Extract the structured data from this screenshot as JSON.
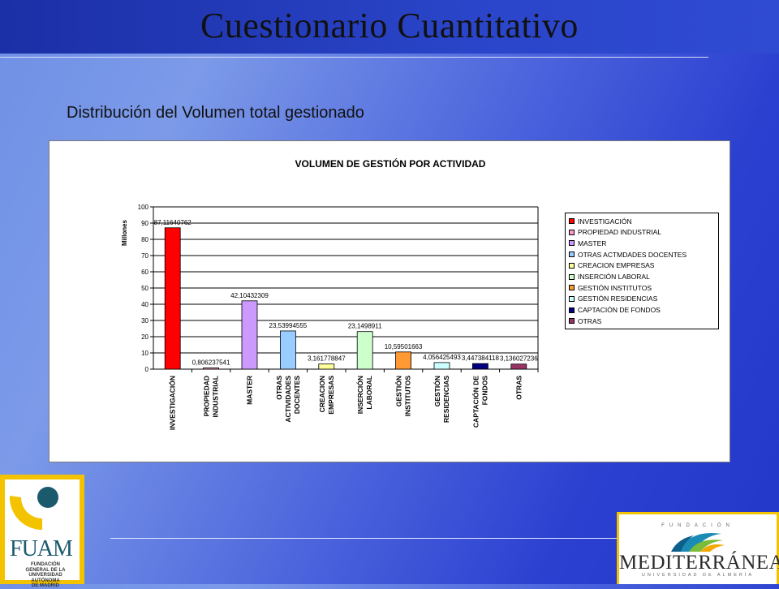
{
  "slide": {
    "title": "Cuestionario Cuantitativo",
    "subtitle": "Distribución del Volumen total gestionado"
  },
  "colors": {
    "background": "#4a62dc",
    "topbar": "#2a45c9",
    "logo_gold": "#f3c300"
  },
  "chart_data": {
    "type": "bar",
    "title": "VOLUMEN DE GESTIÓN POR ACTIVIDAD",
    "xlabel": "",
    "ylabel": "Millones",
    "ylim": [
      0,
      100
    ],
    "yticks": [
      0,
      10,
      20,
      30,
      40,
      50,
      60,
      70,
      80,
      90,
      100
    ],
    "grid": true,
    "legend_position": "right",
    "categories": [
      "INVESTIGACIÓN",
      "PROPIEDAD INDUSTRIAL",
      "MASTER",
      "OTRAS ACTIVIDADES DOCENTES",
      "CREACION EMPRESAS",
      "INSERCIÓN LABORAL",
      "GESTIÓN INSTITUTOS",
      "GESTIÓN RESIDENCIAS",
      "CAPTACIÓN DE FONDOS",
      "OTRAS"
    ],
    "category_lines": [
      [
        "INVESTIGACIÓN"
      ],
      [
        "PROPIEDAD",
        "INDUSTRIAL"
      ],
      [
        "MASTER"
      ],
      [
        "OTRAS",
        "ACTIVIDADES",
        "DOCENTES"
      ],
      [
        "CREACION",
        "EMPRESAS"
      ],
      [
        "INSERCIÓN",
        "LABORAL"
      ],
      [
        "GESTIÓN",
        "INSTITUTOS"
      ],
      [
        "GESTIÓN",
        "RESIDENCIAS"
      ],
      [
        "CAPTACIÓN DE",
        "FONDOS"
      ],
      [
        "OTRAS"
      ]
    ],
    "values": [
      87.11640762,
      0.806237541,
      42.10432309,
      23.53994555,
      3.161778847,
      23.1498911,
      10.59501663,
      4.056425493,
      3.447384118,
      3.136027236
    ],
    "value_labels": [
      "87,11640762",
      "0,806237541",
      "42,10432309",
      "23,53994555",
      "3,161778847",
      "23,1498911",
      "10,59501663",
      "4,056425493",
      "3,447384118",
      "3,136027236"
    ],
    "colors": [
      "#ff0000",
      "#ff99cc",
      "#cc99ff",
      "#99ccff",
      "#ffff99",
      "#ccffcc",
      "#ff9933",
      "#ccffff",
      "#000080",
      "#993366"
    ],
    "legend": [
      "INVESTIGACIÓN",
      "PROPIEDAD INDUSTRIAL",
      "MASTER",
      "OTRAS ACTMDADES DOCENTES",
      "CREACION EMPRESAS",
      "INSERCIÓN LABORAL",
      "GESTIÓN INSTITUTOS",
      "GESTIÓN RESIDENCIAS",
      "CAPTACIÓN DE FONDOS",
      "OTRAS"
    ]
  },
  "logos": {
    "fuam": {
      "name": "FUAM",
      "caption_lines": [
        "FUNDACIÓN",
        "GENERAL DE LA",
        "UNIVERSIDAD",
        "AUTÓNOMA",
        "DE MADRID"
      ]
    },
    "mediterranea": {
      "top": "FUNDACIÓN",
      "name": "MEDITERRÁNEA",
      "sub": "UNIVERSIDAD DE ALMERÍA"
    }
  }
}
